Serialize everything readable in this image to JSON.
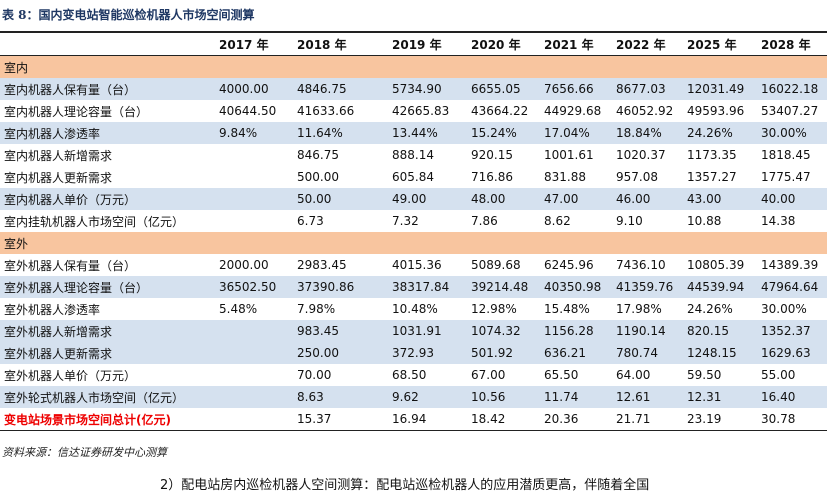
{
  "title": "表 8：国内变电站智能巡检机器人市场空间测算",
  "table": {
    "columns": [
      "2017 年",
      "2018 年",
      "2019 年",
      "2020 年",
      "2021 年",
      "2022 年",
      "2025 年",
      "2028 年"
    ],
    "sections": [
      {
        "name": "室内",
        "rows": [
          {
            "label": "室内机器人保有量（台）",
            "cells": [
              "4000.00",
              "4846.75",
              "5734.90",
              "6655.05",
              "7656.66",
              "8677.03",
              "12031.49",
              "16022.18"
            ]
          },
          {
            "label": "室内机器人理论容量（台）",
            "cells": [
              "40644.50",
              "41633.66",
              "42665.83",
              "43664.22",
              "44929.68",
              "46052.92",
              "49593.96",
              "53407.27"
            ]
          },
          {
            "label": "室内机器人渗透率",
            "cells": [
              "9.84%",
              "11.64%",
              "13.44%",
              "15.24%",
              "17.04%",
              "18.84%",
              "24.26%",
              "30.00%"
            ]
          },
          {
            "label": "室内机器人新增需求",
            "cells": [
              null,
              "846.75",
              "888.14",
              "920.15",
              "1001.61",
              "1020.37",
              "1173.35",
              "1818.45"
            ]
          },
          {
            "label": "室内机器人更新需求",
            "cells": [
              null,
              "500.00",
              "605.84",
              "716.86",
              "831.88",
              "957.08",
              "1357.27",
              "1775.47"
            ]
          },
          {
            "label": "室内机器人单价（万元）",
            "cells": [
              null,
              "50.00",
              "49.00",
              "48.00",
              "47.00",
              "46.00",
              "43.00",
              "40.00"
            ]
          },
          {
            "label": "室内挂轨机器人市场空间（亿元）",
            "cells": [
              null,
              "6.73",
              "7.32",
              "7.86",
              "8.62",
              "9.10",
              "10.88",
              "14.38"
            ]
          }
        ]
      },
      {
        "name": "室外",
        "rows": [
          {
            "label": "室外机器人保有量（台）",
            "cells": [
              "2000.00",
              "2983.45",
              "4015.36",
              "5089.68",
              "6245.96",
              "7436.10",
              "10805.39",
              "14389.39"
            ]
          },
          {
            "label": "室外机器人理论容量（台）",
            "cells": [
              "36502.50",
              "37390.86",
              "38317.84",
              "39214.48",
              "40350.98",
              "41359.76",
              "44539.94",
              "47964.64"
            ]
          },
          {
            "label": "室外机器人渗透率",
            "cells": [
              "5.48%",
              "7.98%",
              "10.48%",
              "12.98%",
              "15.48%",
              "17.98%",
              "24.26%",
              "30.00%"
            ]
          },
          {
            "label": "室外机器人新增需求",
            "cells": [
              null,
              "983.45",
              "1031.91",
              "1074.32",
              "1156.28",
              "1190.14",
              "820.15",
              "1352.37"
            ]
          },
          {
            "label": "室外机器人更新需求",
            "cells": [
              null,
              "250.00",
              "372.93",
              "501.92",
              "636.21",
              "780.74",
              "1248.15",
              "1629.63"
            ]
          },
          {
            "label": "室外机器人单价（万元）",
            "cells": [
              null,
              "70.00",
              "68.50",
              "67.00",
              "65.50",
              "64.00",
              "59.50",
              "55.00"
            ]
          },
          {
            "label": "室外轮式机器人市场空间（亿元）",
            "cells": [
              null,
              "8.63",
              "9.62",
              "10.56",
              "11.74",
              "12.61",
              "12.31",
              "16.40"
            ]
          }
        ]
      }
    ],
    "total": {
      "label": "变电站场景市场空间总计(亿元)",
      "cells": [
        null,
        "15.37",
        "16.94",
        "18.42",
        "20.36",
        "21.71",
        "23.19",
        "30.78"
      ]
    }
  },
  "source": "资料来源：信达证券研发中心测算",
  "next_paragraph": "2）配电站房内巡检机器人空间测算：配电站巡检机器人的应用潜质更高，伴随着全国"
}
